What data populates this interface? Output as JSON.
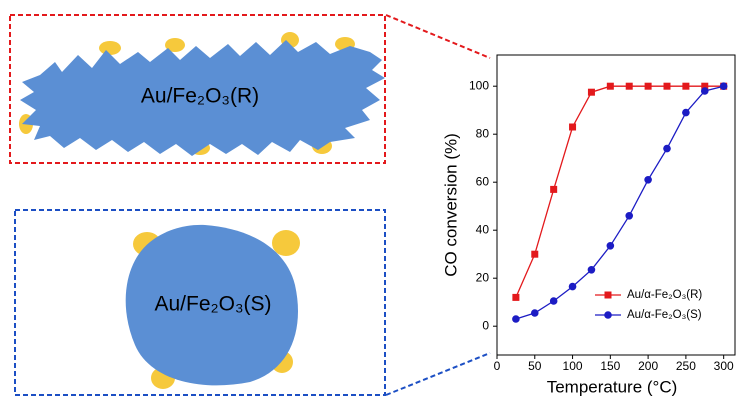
{
  "chart_data": {
    "type": "line",
    "x_label": "Temperature (°C)",
    "y_label": "CO conversion (%)",
    "x": [
      25,
      50,
      75,
      100,
      125,
      150,
      175,
      200,
      225,
      250,
      275,
      300
    ],
    "series": [
      {
        "name": "Au/α-Fe₂O₃(R)",
        "color": "#e3191c",
        "marker": "square",
        "values": [
          12,
          30,
          57,
          83,
          97.5,
          100,
          100,
          100,
          100,
          100,
          100,
          100
        ]
      },
      {
        "name": "Au/α-Fe₂O₃(S)",
        "color": "#1c1cc4",
        "marker": "circle",
        "values": [
          3,
          5.5,
          10.5,
          16.5,
          23.5,
          33.5,
          46,
          61,
          74,
          89,
          98,
          100
        ]
      }
    ],
    "xlim": [
      0,
      315
    ],
    "ylim": [
      -12,
      113
    ],
    "xticks": [
      0,
      50,
      100,
      150,
      200,
      250,
      300
    ],
    "yticks": [
      0,
      20,
      40,
      60,
      80,
      100
    ],
    "legend": "lower right"
  },
  "diagrams": [
    {
      "label": "Au/Fe₂O₃(R)"
    },
    {
      "label": "Au/Fe₂O₃(S)"
    }
  ]
}
